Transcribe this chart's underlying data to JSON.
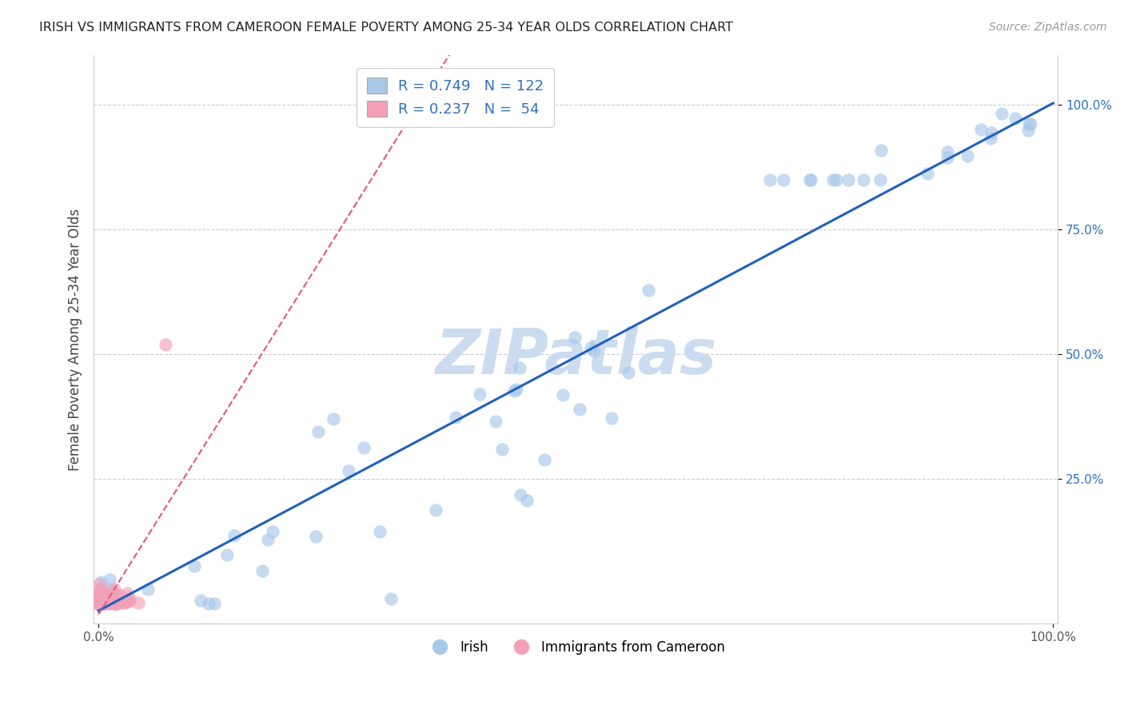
{
  "title": "IRISH VS IMMIGRANTS FROM CAMEROON FEMALE POVERTY AMONG 25-34 YEAR OLDS CORRELATION CHART",
  "source": "Source: ZipAtlas.com",
  "ylabel": "Female Poverty Among 25-34 Year Olds",
  "legend_labels_bottom": [
    "Irish",
    "Immigrants from Cameroon"
  ],
  "irish_color": "#a8c8e8",
  "cameroon_color": "#f4a0b8",
  "irish_line_color": "#2060c0",
  "cameroon_line_color": "#e06080",
  "background_color": "#ffffff",
  "watermark_text": "ZIPatlas",
  "watermark_color": "#ccdcf0",
  "R_irish": 0.749,
  "N_irish": 122,
  "R_cameroon": 0.237,
  "N_cameroon": 54,
  "ytick_color": "#3070c0",
  "xtick_color": "#555555"
}
